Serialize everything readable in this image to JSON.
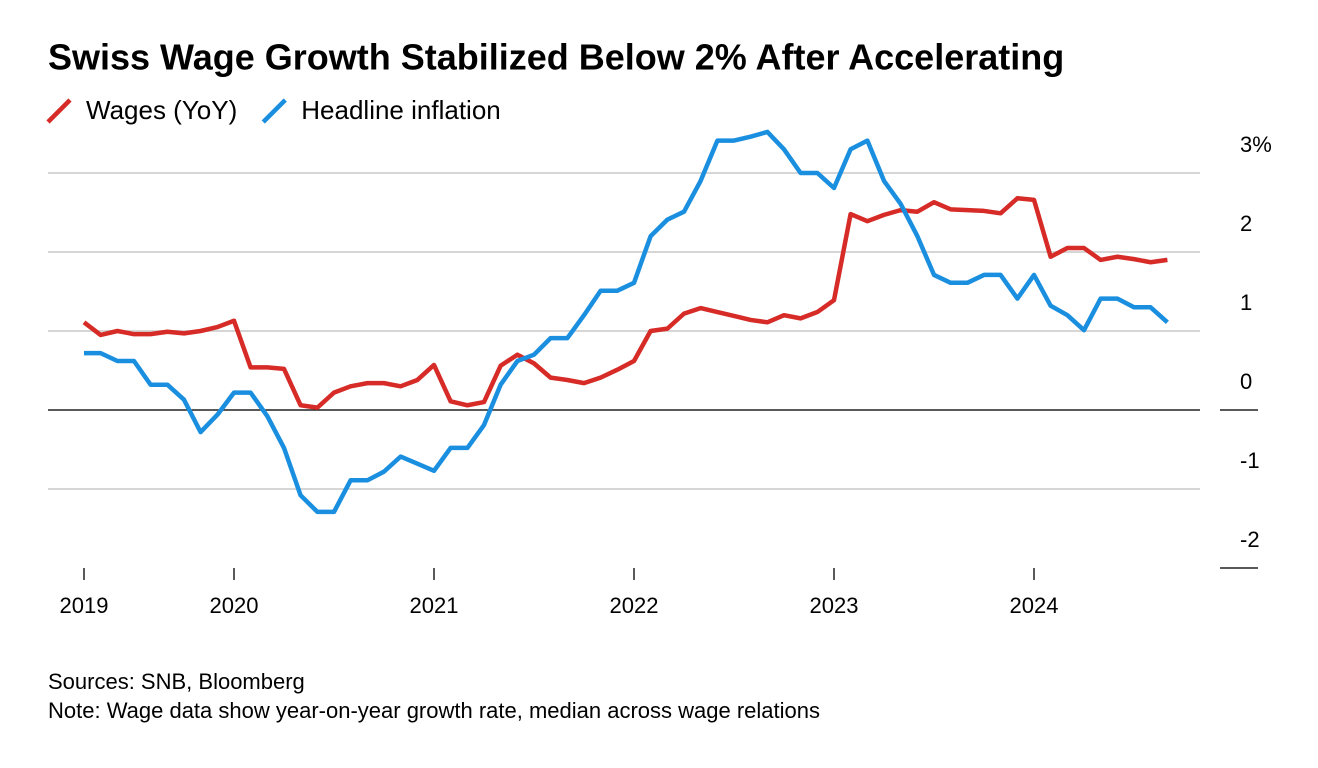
{
  "chart_data": {
    "type": "line",
    "title": "Swiss Wage Growth Stabilized Below 2% After Accelerating",
    "legend": "top-left",
    "sources": "Sources: SNB, Bloomberg",
    "note": "Note: Wage data show year-on-year growth rate, median across wage relations",
    "x": [
      2019.25,
      2019.333,
      2019.417,
      2019.5,
      2019.583,
      2019.667,
      2019.75,
      2019.833,
      2019.917,
      2020,
      2020.083,
      2020.167,
      2020.25,
      2020.333,
      2020.417,
      2020.5,
      2020.583,
      2020.667,
      2020.75,
      2020.833,
      2020.917,
      2021,
      2021.083,
      2021.167,
      2021.25,
      2021.333,
      2021.417,
      2021.5,
      2021.583,
      2021.667,
      2021.75,
      2021.833,
      2021.917,
      2022,
      2022.083,
      2022.167,
      2022.25,
      2022.333,
      2022.417,
      2022.5,
      2022.583,
      2022.667,
      2022.75,
      2022.833,
      2022.917,
      2023,
      2023.083,
      2023.167,
      2023.25,
      2023.333,
      2023.417,
      2023.5,
      2023.583,
      2023.667,
      2023.75,
      2023.833,
      2023.917,
      2024,
      2024.083,
      2024.167,
      2024.25,
      2024.333,
      2024.417,
      2024.5,
      2024.583,
      2024.667
    ],
    "series": [
      {
        "name": "Wages (YoY)",
        "color": "#d62b27",
        "values": [
          1.11,
          0.95,
          1.0,
          0.96,
          0.96,
          0.99,
          0.97,
          1.0,
          1.05,
          1.13,
          0.54,
          0.54,
          0.52,
          0.06,
          0.03,
          0.22,
          0.3,
          0.34,
          0.34,
          0.3,
          0.38,
          0.57,
          0.11,
          0.06,
          0.1,
          0.56,
          0.7,
          0.59,
          0.41,
          0.38,
          0.34,
          0.41,
          0.51,
          0.62,
          1.0,
          1.03,
          1.22,
          1.29,
          1.24,
          1.19,
          1.14,
          1.11,
          1.2,
          1.16,
          1.24,
          1.39,
          2.48,
          2.39,
          2.47,
          2.53,
          2.51,
          2.63,
          2.54,
          2.53,
          2.52,
          2.49,
          2.68,
          2.66,
          1.94,
          2.05,
          2.05,
          1.9,
          1.94,
          1.91,
          1.87,
          1.9
        ]
      },
      {
        "name": "Headline inflation",
        "color": "#1a8fe0",
        "values": [
          0.72,
          0.72,
          0.62,
          0.62,
          0.32,
          0.32,
          0.13,
          -0.28,
          -0.06,
          0.22,
          0.22,
          -0.08,
          -0.48,
          -1.08,
          -1.29,
          -1.29,
          -0.89,
          -0.89,
          -0.78,
          -0.59,
          -0.68,
          -0.77,
          -0.48,
          -0.48,
          -0.19,
          0.32,
          0.62,
          0.7,
          0.91,
          0.91,
          1.2,
          1.51,
          1.51,
          1.61,
          2.2,
          2.41,
          2.51,
          2.9,
          3.41,
          3.41,
          3.46,
          3.52,
          3.3,
          3.0,
          3.0,
          2.81,
          3.3,
          3.41,
          2.9,
          2.61,
          2.2,
          1.71,
          1.61,
          1.61,
          1.71,
          1.71,
          1.41,
          1.71,
          1.32,
          1.2,
          1.01,
          1.41,
          1.41,
          1.3,
          1.3,
          1.11
        ]
      }
    ],
    "xlim": [
      2019.07,
      2024.83
    ],
    "xticks": [
      {
        "value": 2019.25,
        "label": "2019"
      },
      2020,
      2021,
      2022,
      2023,
      2024
    ],
    "ylim": [
      -2,
      3.5
    ],
    "yticks": [
      -2,
      -1,
      0,
      1,
      2,
      {
        "value": 3,
        "label": "3%"
      }
    ],
    "grid": true
  }
}
